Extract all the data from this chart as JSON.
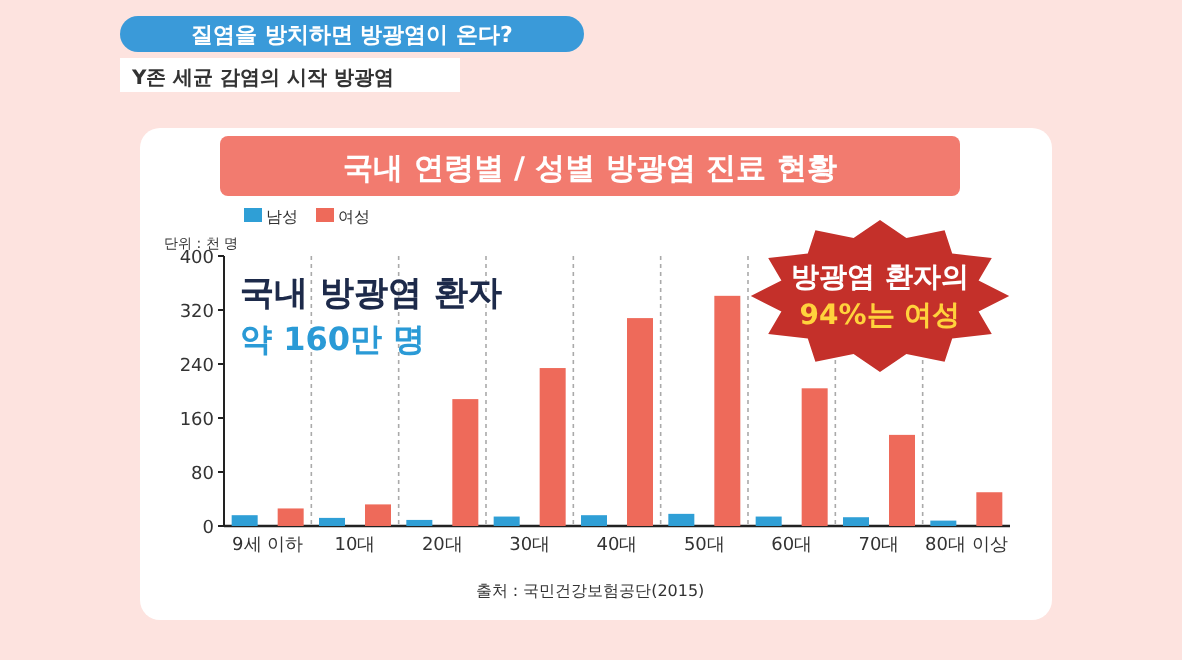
{
  "chart_data": {
    "type": "bar",
    "title": "국내 연령별 / 성별 방광염 진료 현황",
    "ylabel": "단위 : 천 명",
    "categories": [
      "9세 이하",
      "10대",
      "20대",
      "30대",
      "40대",
      "50대",
      "60대",
      "70대",
      "80대 이상"
    ],
    "series": [
      {
        "name": "남성",
        "color": "#2f9fd6",
        "values": [
          16,
          12,
          9,
          14,
          16,
          18,
          14,
          13,
          8
        ]
      },
      {
        "name": "여성",
        "color": "#ee6a5a",
        "values": [
          26,
          32,
          188,
          234,
          308,
          341,
          204,
          135,
          50
        ]
      }
    ],
    "ylim": [
      0,
      400
    ],
    "yticks": [
      0,
      80,
      160,
      240,
      320,
      400
    ],
    "grid": "x",
    "legend": "top left",
    "annotations": [
      "질염을 방치하면 방광염이 온다?",
      "Y존 세균 감염의 시작 방광염",
      "국내 방광염 환자",
      "약 160만 명",
      "방광염 환자의",
      "94%는 여성",
      "출처 : 국민건강보험공단(2015)"
    ]
  }
}
